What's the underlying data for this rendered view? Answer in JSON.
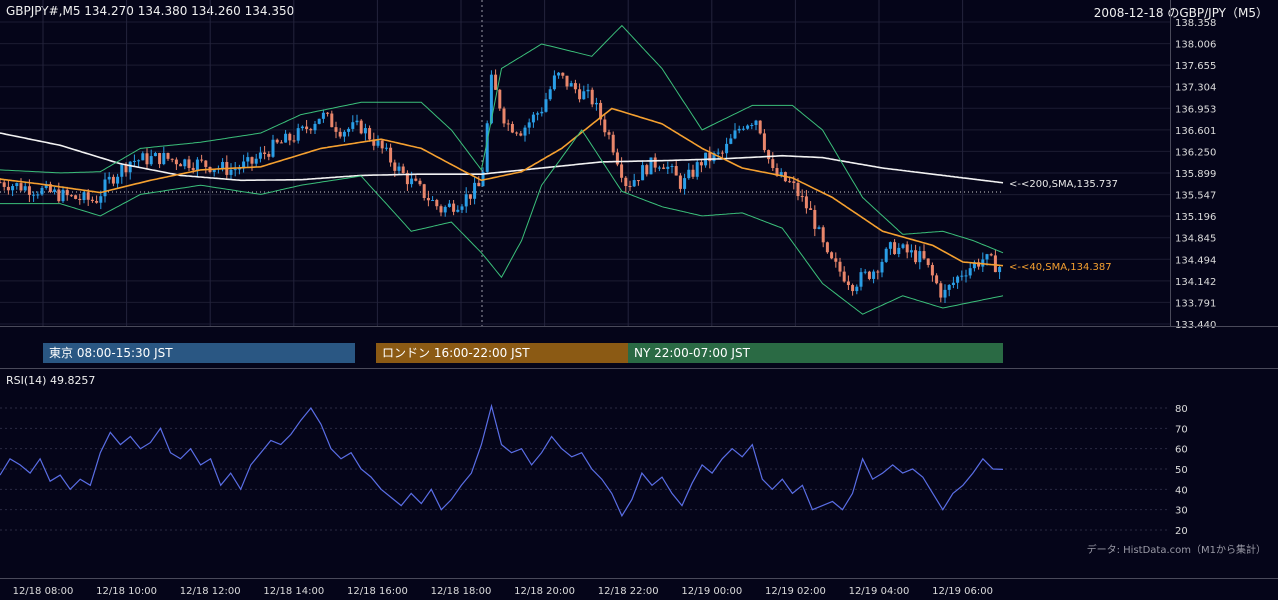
{
  "header": {
    "symbol_quote": "GBPJPY#,M5 134.270 134.380 134.260 134.350",
    "title": "2008-12-18 のGBP/JPY（M5）"
  },
  "sessions": [
    {
      "label": "東京 08:00-15:30 JST",
      "color": "#2a5783"
    },
    {
      "label": "ロンドン 16:00-22:00 JST",
      "color": "#8b5a14"
    },
    {
      "label": "NY 22:00-07:00 JST",
      "color": "#2a6a44"
    }
  ],
  "rsi_panel": {
    "title": "RSI(14) 49.8257"
  },
  "footer": {
    "credit": "データ: HistData.com（M1から集計）"
  },
  "colors": {
    "background": "#050519",
    "up_candle": "#2a9ee6",
    "down_candle": "#e9866b",
    "sma200": "#f2f2f2",
    "sma40": "#f5a030",
    "bollinger": "#3bbf7a",
    "rsi_line": "#5a6ee6"
  },
  "chart_data": [
    {
      "type": "candlestick",
      "title": "GBPJPY#,M5 134.270 134.380 134.260 134.350",
      "ylim": [
        133.44,
        138.358
      ],
      "y_ticks": [
        "138.358",
        "138.006",
        "137.655",
        "137.304",
        "136.953",
        "136.601",
        "136.250",
        "135.899",
        "135.547",
        "135.196",
        "134.845",
        "134.494",
        "134.142",
        "133.791",
        "133.440"
      ],
      "x_ticks": [
        "8",
        "10",
        "12",
        "14",
        "16",
        "18",
        "20",
        "22",
        "0",
        "2",
        "4",
        "6"
      ],
      "last_close": 134.35,
      "reference_line": 135.59,
      "series": [
        {
          "name": "<-<200,SMA,135.737",
          "value": 135.737,
          "indicator": "SMA200",
          "points": [
            [
              0,
              136.55
            ],
            [
              60,
              136.35
            ],
            [
              120,
              136.05
            ],
            [
              180,
              135.86
            ],
            [
              240,
              135.78
            ],
            [
              300,
              135.79
            ],
            [
              360,
              135.86
            ],
            [
              420,
              135.88
            ],
            [
              480,
              135.88
            ],
            [
              540,
              135.98
            ],
            [
              600,
              136.08
            ],
            [
              660,
              136.1
            ],
            [
              720,
              136.13
            ],
            [
              780,
              136.18
            ],
            [
              820,
              136.15
            ],
            [
              880,
              135.98
            ],
            [
              940,
              135.86
            ],
            [
              1000,
              135.74
            ]
          ]
        },
        {
          "name": "<-<40,SMA,134.387",
          "value": 134.387,
          "indicator": "SMA40",
          "points": [
            [
              0,
              135.8
            ],
            [
              40,
              135.72
            ],
            [
              100,
              135.58
            ],
            [
              150,
              135.78
            ],
            [
              200,
              135.95
            ],
            [
              260,
              136.0
            ],
            [
              320,
              136.3
            ],
            [
              380,
              136.45
            ],
            [
              420,
              136.3
            ],
            [
              460,
              135.95
            ],
            [
              480,
              135.78
            ],
            [
              520,
              135.92
            ],
            [
              560,
              136.3
            ],
            [
              610,
              136.95
            ],
            [
              660,
              136.7
            ],
            [
              700,
              136.3
            ],
            [
              740,
              135.98
            ],
            [
              790,
              135.82
            ],
            [
              830,
              135.5
            ],
            [
              880,
              134.95
            ],
            [
              930,
              134.72
            ],
            [
              960,
              134.45
            ],
            [
              1000,
              134.39
            ]
          ]
        },
        {
          "name": "Bollinger upper",
          "indicator": "BB",
          "points": [
            [
              0,
              135.95
            ],
            [
              60,
              135.9
            ],
            [
              100,
              135.92
            ],
            [
              140,
              136.3
            ],
            [
              200,
              136.4
            ],
            [
              260,
              136.55
            ],
            [
              300,
              136.85
            ],
            [
              360,
              137.05
            ],
            [
              420,
              137.05
            ],
            [
              450,
              136.6
            ],
            [
              480,
              135.95
            ],
            [
              500,
              137.6
            ],
            [
              540,
              138.0
            ],
            [
              590,
              137.8
            ],
            [
              620,
              138.3
            ],
            [
              660,
              137.6
            ],
            [
              700,
              136.6
            ],
            [
              750,
              137.0
            ],
            [
              790,
              137.0
            ],
            [
              820,
              136.6
            ],
            [
              860,
              135.5
            ],
            [
              900,
              134.9
            ],
            [
              940,
              134.95
            ],
            [
              970,
              134.8
            ],
            [
              1000,
              134.6
            ]
          ]
        },
        {
          "name": "Bollinger lower",
          "indicator": "BB",
          "points": [
            [
              0,
              135.4
            ],
            [
              60,
              135.4
            ],
            [
              100,
              135.2
            ],
            [
              140,
              135.55
            ],
            [
              200,
              135.7
            ],
            [
              260,
              135.55
            ],
            [
              300,
              135.7
            ],
            [
              360,
              135.85
            ],
            [
              410,
              134.95
            ],
            [
              450,
              135.1
            ],
            [
              480,
              134.6
            ],
            [
              500,
              134.2
            ],
            [
              520,
              134.8
            ],
            [
              540,
              135.7
            ],
            [
              580,
              136.6
            ],
            [
              620,
              135.6
            ],
            [
              660,
              135.35
            ],
            [
              700,
              135.2
            ],
            [
              740,
              135.25
            ],
            [
              780,
              135.0
            ],
            [
              820,
              134.1
            ],
            [
              860,
              133.6
            ],
            [
              900,
              133.9
            ],
            [
              940,
              133.7
            ],
            [
              1000,
              133.9
            ]
          ]
        }
      ],
      "price_path": [
        [
          0,
          135.75
        ],
        [
          40,
          135.62
        ],
        [
          70,
          135.5
        ],
        [
          95,
          135.45
        ],
        [
          110,
          135.8
        ],
        [
          130,
          136.1
        ],
        [
          160,
          136.15
        ],
        [
          200,
          136.05
        ],
        [
          230,
          135.95
        ],
        [
          250,
          136.05
        ],
        [
          270,
          136.3
        ],
        [
          300,
          136.55
        ],
        [
          320,
          136.85
        ],
        [
          340,
          136.6
        ],
        [
          360,
          136.65
        ],
        [
          380,
          136.3
        ],
        [
          400,
          135.9
        ],
        [
          420,
          135.6
        ],
        [
          440,
          135.3
        ],
        [
          460,
          135.45
        ],
        [
          480,
          135.7
        ],
        [
          490,
          137.4
        ],
        [
          505,
          136.7
        ],
        [
          520,
          136.6
        ],
        [
          540,
          136.95
        ],
        [
          555,
          137.5
        ],
        [
          570,
          137.3
        ],
        [
          590,
          137.1
        ],
        [
          610,
          136.4
        ],
        [
          625,
          135.7
        ],
        [
          645,
          136.0
        ],
        [
          660,
          136.1
        ],
        [
          680,
          135.7
        ],
        [
          700,
          136.1
        ],
        [
          720,
          136.2
        ],
        [
          740,
          136.7
        ],
        [
          755,
          136.8
        ],
        [
          770,
          135.9
        ],
        [
          790,
          135.7
        ],
        [
          810,
          135.2
        ],
        [
          825,
          134.5
        ],
        [
          850,
          134.1
        ],
        [
          870,
          134.3
        ],
        [
          890,
          134.7
        ],
        [
          920,
          134.5
        ],
        [
          940,
          133.9
        ],
        [
          960,
          134.3
        ],
        [
          980,
          134.5
        ],
        [
          1000,
          134.35
        ]
      ]
    },
    {
      "type": "line",
      "title": "RSI(14) 49.8257",
      "ylim": [
        20,
        80
      ],
      "y_ticks": [
        "80",
        "70",
        "60",
        "50",
        "40",
        "30",
        "20"
      ],
      "x_ticks": [
        "12/18 08:00",
        "12/18 10:00",
        "12/18 12:00",
        "12/18 14:00",
        "12/18 16:00",
        "12/18 18:00",
        "12/18 20:00",
        "12/18 22:00",
        "12/19 00:00",
        "12/19 02:00",
        "12/19 04:00",
        "12/19 06:00"
      ],
      "series": [
        {
          "name": "RSI(14)",
          "points": [
            [
              0,
              47
            ],
            [
              10,
              55
            ],
            [
              20,
              52
            ],
            [
              30,
              48
            ],
            [
              40,
              55
            ],
            [
              50,
              44
            ],
            [
              60,
              47
            ],
            [
              70,
              40
            ],
            [
              80,
              45
            ],
            [
              90,
              42
            ],
            [
              100,
              58
            ],
            [
              110,
              68
            ],
            [
              120,
              62
            ],
            [
              130,
              66
            ],
            [
              140,
              60
            ],
            [
              150,
              63
            ],
            [
              160,
              70
            ],
            [
              170,
              58
            ],
            [
              180,
              55
            ],
            [
              190,
              60
            ],
            [
              200,
              52
            ],
            [
              210,
              55
            ],
            [
              220,
              42
            ],
            [
              230,
              48
            ],
            [
              240,
              40
            ],
            [
              250,
              52
            ],
            [
              260,
              58
            ],
            [
              270,
              64
            ],
            [
              280,
              62
            ],
            [
              290,
              67
            ],
            [
              300,
              74
            ],
            [
              310,
              80
            ],
            [
              320,
              72
            ],
            [
              330,
              60
            ],
            [
              340,
              55
            ],
            [
              350,
              58
            ],
            [
              360,
              50
            ],
            [
              370,
              46
            ],
            [
              380,
              40
            ],
            [
              390,
              36
            ],
            [
              400,
              32
            ],
            [
              410,
              38
            ],
            [
              420,
              33
            ],
            [
              430,
              40
            ],
            [
              440,
              30
            ],
            [
              450,
              35
            ],
            [
              460,
              42
            ],
            [
              470,
              48
            ],
            [
              480,
              62
            ],
            [
              490,
              81
            ],
            [
              500,
              62
            ],
            [
              510,
              58
            ],
            [
              520,
              60
            ],
            [
              530,
              52
            ],
            [
              540,
              58
            ],
            [
              550,
              66
            ],
            [
              560,
              60
            ],
            [
              570,
              56
            ],
            [
              580,
              58
            ],
            [
              590,
              50
            ],
            [
              600,
              45
            ],
            [
              610,
              38
            ],
            [
              620,
              27
            ],
            [
              630,
              35
            ],
            [
              640,
              48
            ],
            [
              650,
              42
            ],
            [
              660,
              46
            ],
            [
              670,
              38
            ],
            [
              680,
              32
            ],
            [
              690,
              43
            ],
            [
              700,
              52
            ],
            [
              710,
              48
            ],
            [
              720,
              55
            ],
            [
              730,
              60
            ],
            [
              740,
              56
            ],
            [
              750,
              62
            ],
            [
              760,
              45
            ],
            [
              770,
              40
            ],
            [
              780,
              45
            ],
            [
              790,
              38
            ],
            [
              800,
              42
            ],
            [
              810,
              30
            ],
            [
              820,
              32
            ],
            [
              830,
              34
            ],
            [
              840,
              30
            ],
            [
              850,
              38
            ],
            [
              860,
              55
            ],
            [
              870,
              45
            ],
            [
              880,
              48
            ],
            [
              890,
              52
            ],
            [
              900,
              48
            ],
            [
              910,
              50
            ],
            [
              920,
              46
            ],
            [
              930,
              38
            ],
            [
              940,
              30
            ],
            [
              950,
              38
            ],
            [
              960,
              42
            ],
            [
              970,
              48
            ],
            [
              980,
              55
            ],
            [
              990,
              50
            ],
            [
              1000,
              49.8
            ]
          ]
        }
      ]
    }
  ]
}
